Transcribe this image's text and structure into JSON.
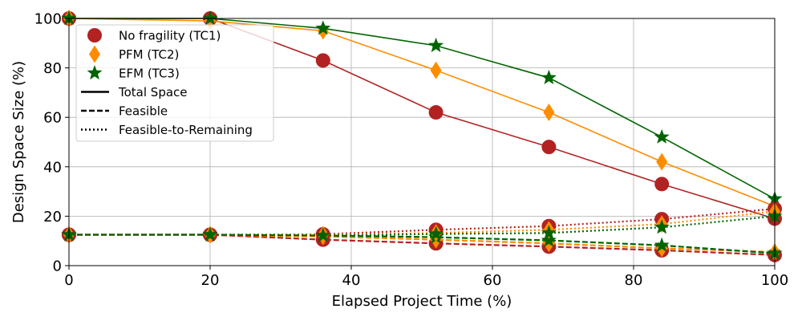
{
  "chart_data": {
    "type": "line",
    "title": "",
    "xlabel": "Elapsed Project Time (%)",
    "ylabel": "Design Space Size (%)",
    "xlim": [
      0,
      100
    ],
    "ylim": [
      0,
      100
    ],
    "xticks": [
      0,
      20,
      40,
      60,
      80,
      100
    ],
    "yticks": [
      0,
      20,
      40,
      60,
      80,
      100
    ],
    "grid": true,
    "legend_position": "top-left",
    "x": [
      0,
      20,
      36,
      52,
      68,
      84,
      100
    ],
    "series": [
      {
        "name": "No fragility (TC1)",
        "color": "#b22222",
        "marker": "circle",
        "style": "solid",
        "values": [
          100,
          100,
          83,
          62,
          48,
          33,
          19
        ]
      },
      {
        "name": "PFM (TC2)",
        "color": "#ff8c00",
        "marker": "diamond",
        "style": "solid",
        "values": [
          100,
          99,
          95,
          79,
          62,
          42,
          24
        ]
      },
      {
        "name": "EFM (TC3)",
        "color": "#006400",
        "marker": "star",
        "style": "solid",
        "values": [
          100,
          100,
          96,
          89,
          76,
          52,
          27
        ]
      },
      {
        "name": "No fragility (TC1)",
        "color": "#b22222",
        "marker": "circle",
        "style": "dashed",
        "values": [
          12.5,
          12.5,
          10.5,
          9,
          7.7,
          6.2,
          4.3
        ]
      },
      {
        "name": "PFM (TC2)",
        "color": "#ff8c00",
        "marker": "diamond",
        "style": "dashed",
        "values": [
          12.5,
          12.5,
          11.8,
          10.5,
          9,
          7,
          5.5
        ]
      },
      {
        "name": "EFM (TC3)",
        "color": "#006400",
        "marker": "star",
        "style": "dashed",
        "values": [
          12.5,
          12.5,
          12.2,
          11.5,
          10.2,
          8.2,
          5
        ]
      },
      {
        "name": "No fragility (TC1)",
        "color": "#b22222",
        "marker": "circle",
        "style": "dotted",
        "values": [
          12.5,
          12.5,
          12.7,
          14.5,
          16,
          18.8,
          23
        ]
      },
      {
        "name": "PFM (TC2)",
        "color": "#ff8c00",
        "marker": "diamond",
        "style": "dotted",
        "values": [
          12.5,
          12.5,
          12.5,
          13.2,
          14.5,
          16.8,
          22
        ]
      },
      {
        "name": "EFM (TC3)",
        "color": "#006400",
        "marker": "star",
        "style": "dotted",
        "values": [
          12.5,
          12.5,
          12.2,
          12.8,
          13.2,
          15.5,
          20
        ]
      }
    ],
    "legend": {
      "markers": [
        {
          "label": "No fragility (TC1)",
          "color": "#b22222",
          "marker": "circle"
        },
        {
          "label": "PFM (TC2)",
          "color": "#ff8c00",
          "marker": "diamond"
        },
        {
          "label": "EFM (TC3)",
          "color": "#006400",
          "marker": "star"
        }
      ],
      "linestyles": [
        {
          "label": "Total Space",
          "style": "solid"
        },
        {
          "label": "Feasible",
          "style": "dashed"
        },
        {
          "label": "Feasible-to-Remaining",
          "style": "dotted"
        }
      ]
    }
  }
}
